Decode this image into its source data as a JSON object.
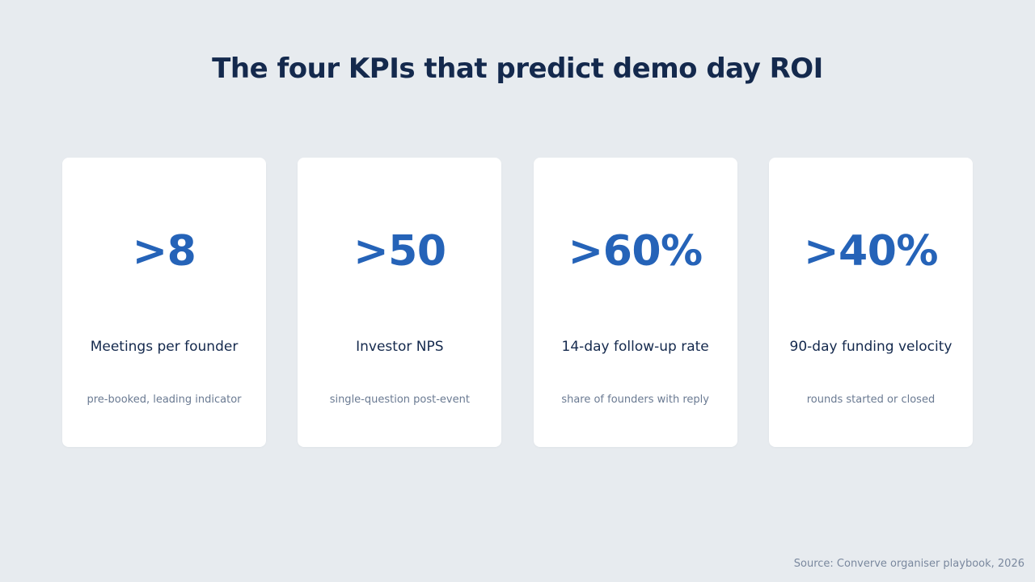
{
  "title": "The four KPIs that predict demo day ROI",
  "kpis": [
    {
      "value": ">8",
      "label": "Meetings per founder",
      "sub": "pre-booked, leading indicator"
    },
    {
      "value": ">50",
      "label": "Investor NPS",
      "sub": "single-question post-event"
    },
    {
      "value": ">60%",
      "label": "14-day follow-up rate",
      "sub": "share of founders with reply"
    },
    {
      "value": ">40%",
      "label": "90-day funding velocity",
      "sub": "rounds started or closed"
    }
  ],
  "source": "Source: Converve organiser playbook, 2026",
  "colors": {
    "background": "#e7ebef",
    "card": "#ffffff",
    "title": "#14294d",
    "accent": "#2563b8",
    "muted": "#6a7a92"
  }
}
